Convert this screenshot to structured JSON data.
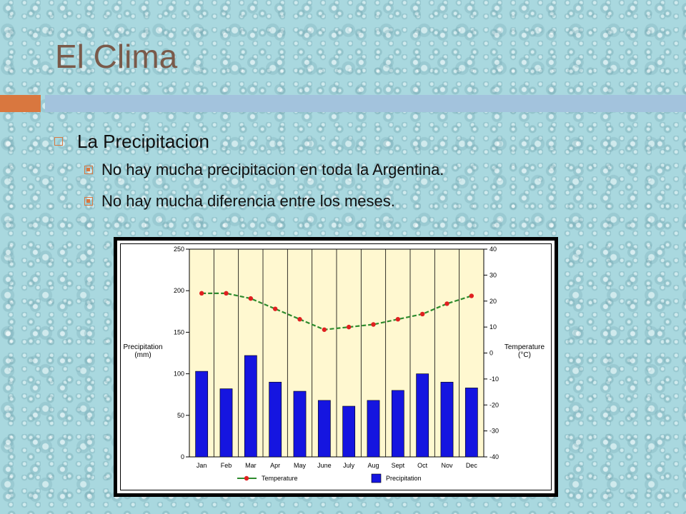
{
  "slide": {
    "title": "El Clima",
    "bullet": "La Precipitacion",
    "subbullets": [
      "No hay mucha precipitacion en toda la Argentina.",
      "No hay mucha diferencia entre los meses."
    ]
  },
  "colors": {
    "accent": "#d9773f",
    "bar": "#1515e0",
    "line": "#2e8b2e",
    "point": "#e02020",
    "plot_bg": "#fff8d0"
  },
  "chart_data": {
    "type": "bar",
    "categories": [
      "Jan",
      "Feb",
      "Mar",
      "Apr",
      "May",
      "June",
      "July",
      "Aug",
      "Sept",
      "Oct",
      "Nov",
      "Dec"
    ],
    "series": [
      {
        "name": "Precipitation",
        "type": "bar",
        "axis": "left",
        "values": [
          103,
          82,
          122,
          90,
          79,
          68,
          61,
          68,
          80,
          100,
          90,
          83
        ]
      },
      {
        "name": "Temperature",
        "type": "line",
        "axis": "right",
        "values": [
          23,
          23,
          21,
          17,
          13,
          9,
          10,
          11,
          13,
          15,
          19,
          22
        ]
      }
    ],
    "ylabel": "Precipitation\n(mm)",
    "ylabel_right": "Temperature\n(°C)",
    "ylim": [
      0,
      250
    ],
    "ylim_right": [
      -40,
      40
    ],
    "yticks": [
      0,
      50,
      100,
      150,
      200,
      250
    ],
    "yticks_right": [
      -40,
      -30,
      -20,
      -10,
      0,
      10,
      20,
      30,
      40
    ],
    "legend": [
      "Temperature",
      "Precipitation"
    ],
    "legend_position": "bottom",
    "grid": "vertical"
  }
}
